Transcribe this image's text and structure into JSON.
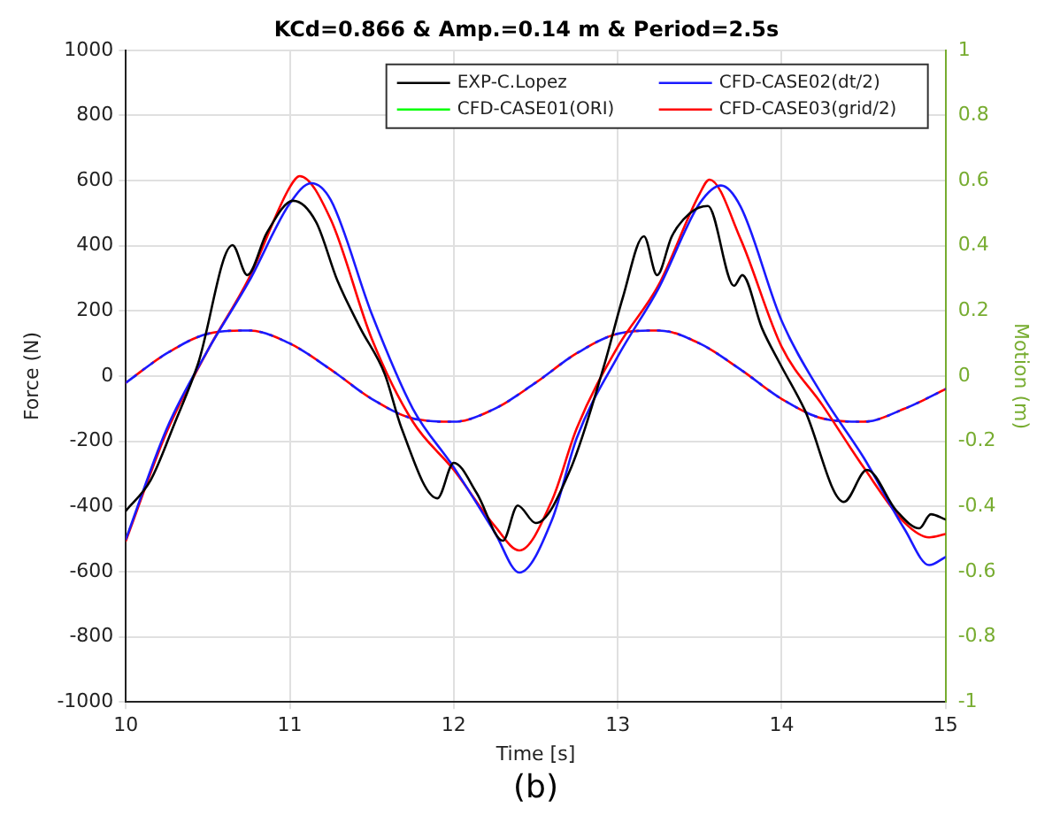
{
  "chart_data": {
    "type": "line",
    "title": "KCd=0.866 & Amp.=0.14 m & Period=2.5s",
    "xlabel": "Time [s]",
    "ylabel": "Force (N)",
    "y2label": "Motion (m)",
    "annotations": [
      "(b)"
    ],
    "xlim": [
      10,
      15
    ],
    "xticks": [
      10,
      11,
      12,
      13,
      14,
      15
    ],
    "ylim": [
      -1000,
      1000
    ],
    "yticks": [
      -1000,
      -800,
      -600,
      -400,
      -200,
      0,
      200,
      400,
      600,
      800,
      1000
    ],
    "y2lim": [
      -1,
      1
    ],
    "y2ticks": [
      -1,
      -0.8,
      -0.6,
      -0.4,
      -0.2,
      0,
      0.2,
      0.4,
      0.6,
      0.8,
      1
    ],
    "grid": true,
    "legend": "top right",
    "line_style": "solid",
    "marker": "none",
    "series": [
      {
        "name": "EXP-C.Lopez",
        "color": "#000000",
        "x": [
          10,
          10.15,
          10.3,
          10.44,
          10.65,
          10.74,
          10.86,
          11.02,
          11.16,
          11.29,
          11.43,
          11.58,
          11.68,
          11.9,
          12.0,
          12.14,
          12.3,
          12.39,
          12.5,
          12.71,
          12.92,
          13.03,
          13.16,
          13.24,
          13.33,
          13.44,
          13.55,
          13.71,
          13.76,
          13.88,
          13.99,
          14.14,
          14.38,
          14.52,
          14.7,
          14.84,
          14.91,
          15
        ],
        "values": [
          -413,
          -320,
          -141,
          38,
          402,
          310,
          440,
          538,
          473,
          293,
          147,
          5,
          -158,
          -375,
          -266,
          -359,
          -505,
          -397,
          -451,
          -288,
          38,
          239,
          429,
          310,
          429,
          500,
          522,
          277,
          310,
          147,
          38,
          -103,
          -386,
          -288,
          -413,
          -467,
          -424,
          -440
        ]
      },
      {
        "name": "CFD-CASE02(dt/2)",
        "color": "#1a1aff",
        "x": [
          10,
          10.25,
          10.5,
          10.75,
          11.0,
          11.13,
          11.25,
          11.5,
          11.75,
          12.0,
          12.25,
          12.4,
          12.6,
          12.75,
          13.0,
          13.25,
          13.5,
          13.63,
          13.75,
          14.0,
          14.25,
          14.5,
          14.75,
          14.9,
          15
        ],
        "values": [
          -500,
          -160,
          80,
          290,
          530,
          592,
          540,
          190,
          -100,
          -280,
          -480,
          -603,
          -440,
          -190,
          60,
          270,
          530,
          585,
          520,
          170,
          -60,
          -250,
          -470,
          -580,
          -555
        ]
      },
      {
        "name": "CFD-CASE01(ORI)",
        "color": "#00ff00"
      },
      {
        "name": "CFD-CASE03(grid/2)",
        "color": "#ff0000",
        "x": [
          10,
          10.25,
          10.5,
          10.75,
          11.0,
          11.06,
          11.25,
          11.5,
          11.75,
          12.0,
          12.25,
          12.4,
          12.6,
          12.75,
          13.0,
          13.25,
          13.5,
          13.56,
          13.75,
          14.0,
          14.25,
          14.5,
          14.75,
          14.9,
          15
        ],
        "values": [
          -505,
          -170,
          80,
          300,
          580,
          614,
          480,
          114,
          -140,
          -288,
          -460,
          -535,
          -380,
          -160,
          90,
          280,
          560,
          603,
          420,
          90,
          -90,
          -280,
          -450,
          -495,
          -485
        ]
      },
      {
        "color": "#1a1aff",
        "axis": "y2",
        "line_style": "dashed",
        "x": [
          10,
          10.25,
          10.5,
          10.75,
          11,
          11.25,
          11.5,
          11.75,
          12,
          12.25,
          12.5,
          12.75,
          13,
          13.25,
          13.5,
          13.75,
          14,
          14.25,
          14.5,
          14.75,
          15
        ],
        "values": [
          -0.02,
          0.07,
          0.13,
          0.14,
          0.1,
          0.02,
          -0.07,
          -0.13,
          -0.14,
          -0.1,
          -0.02,
          0.07,
          0.13,
          0.14,
          0.1,
          0.02,
          -0.07,
          -0.13,
          -0.14,
          -0.1,
          -0.04
        ]
      },
      {
        "color": "#ff0000",
        "axis": "y2",
        "line_style": "dashed",
        "x": [
          10,
          10.25,
          10.5,
          10.75,
          11,
          11.25,
          11.5,
          11.75,
          12,
          12.25,
          12.5,
          12.75,
          13,
          13.25,
          13.5,
          13.75,
          14,
          14.25,
          14.5,
          14.75,
          15
        ],
        "values": [
          -0.02,
          0.07,
          0.13,
          0.14,
          0.1,
          0.02,
          -0.07,
          -0.13,
          -0.14,
          -0.1,
          -0.02,
          0.07,
          0.13,
          0.14,
          0.1,
          0.02,
          -0.07,
          -0.13,
          -0.14,
          -0.1,
          -0.04
        ]
      }
    ]
  }
}
